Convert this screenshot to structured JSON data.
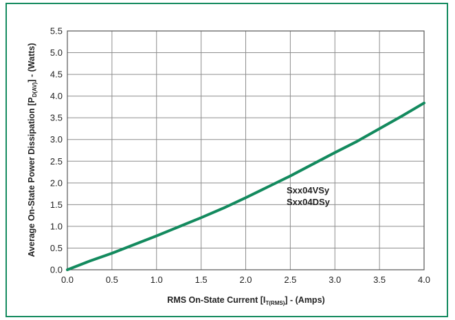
{
  "chart_data": {
    "type": "line",
    "xlabel": {
      "pre": "RMS On-State Current [I",
      "sub": "T(RMS)",
      "post": "] - (Amps)"
    },
    "ylabel": {
      "pre": "Average On-State Power Dissipation [P",
      "sub": "D(AV)",
      "post": "] - (Watts)"
    },
    "xlim": [
      0,
      4.0
    ],
    "ylim": [
      0,
      5.5
    ],
    "xticks": [
      "0.0",
      "0.5",
      "1.0",
      "1.5",
      "2.0",
      "2.5",
      "3.0",
      "3.5",
      "4.0"
    ],
    "yticks": [
      "0.0",
      "0.5",
      "1.0",
      "1.5",
      "2.0",
      "2.5",
      "3.0",
      "3.5",
      "4.0",
      "4.5",
      "5.0",
      "5.5"
    ],
    "grid": true,
    "series": [
      {
        "color": "#138a5e",
        "x": [
          0.0,
          0.25,
          0.5,
          0.75,
          1.0,
          1.25,
          1.5,
          1.75,
          2.0,
          2.25,
          2.5,
          2.75,
          3.0,
          3.25,
          3.5,
          3.75,
          4.0
        ],
        "y": [
          0.0,
          0.2,
          0.38,
          0.58,
          0.78,
          0.99,
          1.2,
          1.42,
          1.66,
          1.91,
          2.16,
          2.43,
          2.7,
          2.96,
          3.25,
          3.54,
          3.84
        ]
      }
    ],
    "annotations": [
      "Sxx04VSy",
      "Sxx04DSy"
    ]
  }
}
